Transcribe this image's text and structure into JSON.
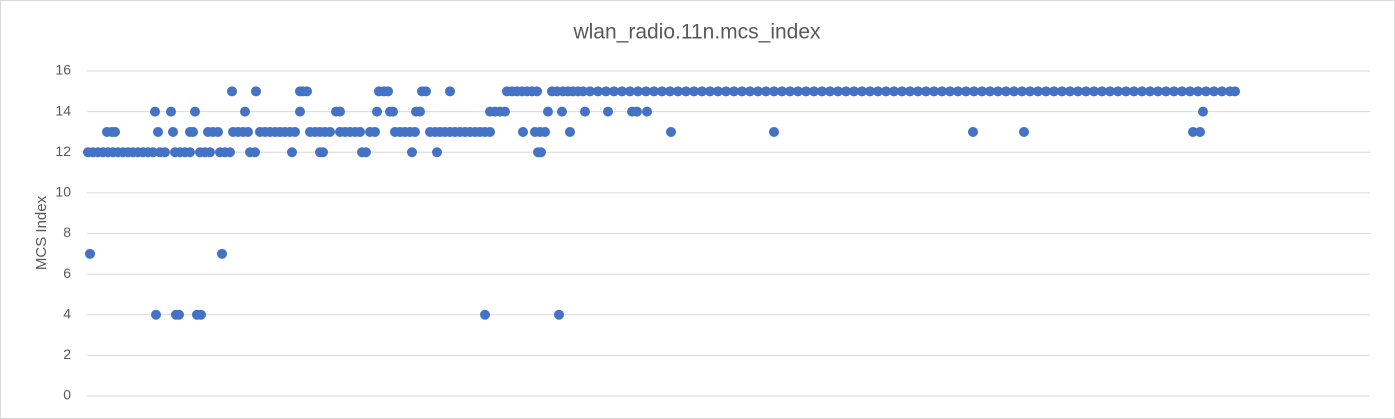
{
  "chart_data": {
    "type": "scatter",
    "title": "wlan_radio.11n.mcs_index",
    "y_label": "MCS Index",
    "color": "#4472c4",
    "grid": true,
    "xlim": [
      87,
      1370
    ],
    "ylim": [
      0,
      16
    ],
    "yticks": [
      0,
      2,
      4,
      6,
      8,
      10,
      12,
      14,
      16
    ],
    "x": [
      88,
      93,
      98,
      103,
      108,
      113,
      118,
      123,
      128,
      133,
      138,
      143,
      148,
      153,
      160,
      165,
      175,
      180,
      185,
      190,
      200,
      205,
      210,
      220,
      225,
      230,
      250,
      255,
      292,
      320,
      323,
      362,
      366,
      412,
      437,
      538,
      541,
      90,
      222,
      107,
      112,
      115,
      158,
      173,
      190,
      193,
      208,
      213,
      218,
      233,
      238,
      243,
      248,
      260,
      265,
      270,
      275,
      280,
      285,
      290,
      295,
      310,
      315,
      320,
      325,
      330,
      340,
      345,
      350,
      355,
      360,
      370,
      375,
      395,
      400,
      405,
      410,
      415,
      430,
      435,
      440,
      445,
      450,
      455,
      460,
      465,
      470,
      475,
      480,
      485,
      490,
      523,
      535,
      540,
      545,
      570,
      671,
      774,
      973,
      1024,
      1193,
      1200,
      155,
      171,
      195,
      245,
      300,
      336,
      340,
      377,
      390,
      393,
      416,
      420,
      490,
      495,
      500,
      505,
      548,
      562,
      585,
      608,
      632,
      637,
      647,
      1203,
      156,
      176,
      179,
      197,
      201,
      485,
      559,
      232,
      256,
      300,
      303,
      307,
      379,
      384,
      388,
      422,
      426,
      450,
      507,
      512,
      517,
      522,
      527,
      532,
      537,
      552,
      557,
      563,
      568,
      573,
      578,
      583,
      590,
      598,
      606,
      614,
      622,
      630,
      638,
      646,
      654,
      662,
      670,
      678,
      686,
      694,
      702,
      710,
      718,
      726,
      734,
      742,
      750,
      758,
      766,
      774,
      782,
      790,
      798,
      806,
      814,
      822,
      830,
      838,
      846,
      854,
      862,
      870,
      878,
      886,
      894,
      902,
      910,
      918,
      926,
      934,
      942,
      950,
      958,
      966,
      974,
      982,
      990,
      998,
      1006,
      1014,
      1022,
      1030,
      1038,
      1046,
      1054,
      1062,
      1070,
      1078,
      1086,
      1094,
      1102,
      1110,
      1118,
      1126,
      1134,
      1142,
      1150,
      1158,
      1166,
      1174,
      1182,
      1190,
      1198,
      1206,
      1214,
      1222,
      1230,
      1235
    ],
    "values": [
      12,
      12,
      12,
      12,
      12,
      12,
      12,
      12,
      12,
      12,
      12,
      12,
      12,
      12,
      12,
      12,
      12,
      12,
      12,
      12,
      12,
      12,
      12,
      12,
      12,
      12,
      12,
      12,
      12,
      12,
      12,
      12,
      12,
      12,
      12,
      12,
      12,
      7,
      7,
      13,
      13,
      13,
      13,
      13,
      13,
      13,
      13,
      13,
      13,
      13,
      13,
      13,
      13,
      13,
      13,
      13,
      13,
      13,
      13,
      13,
      13,
      13,
      13,
      13,
      13,
      13,
      13,
      13,
      13,
      13,
      13,
      13,
      13,
      13,
      13,
      13,
      13,
      13,
      13,
      13,
      13,
      13,
      13,
      13,
      13,
      13,
      13,
      13,
      13,
      13,
      13,
      13,
      13,
      13,
      13,
      13,
      13,
      13,
      13,
      13,
      13,
      13,
      14,
      14,
      14,
      14,
      14,
      14,
      14,
      14,
      14,
      14,
      14,
      14,
      14,
      14,
      14,
      14,
      14,
      14,
      14,
      14,
      14,
      14,
      14,
      14,
      4,
      4,
      4,
      4,
      4,
      4,
      4,
      15,
      15,
      15,
      15,
      15,
      15,
      15,
      15,
      15,
      15,
      15,
      15,
      15,
      15,
      15,
      15,
      15,
      15,
      15,
      15,
      15,
      15,
      15,
      15,
      15,
      15,
      15,
      15,
      15,
      15,
      15,
      15,
      15,
      15,
      15,
      15,
      15,
      15,
      15,
      15,
      15,
      15,
      15,
      15,
      15,
      15,
      15,
      15,
      15,
      15,
      15,
      15,
      15,
      15,
      15,
      15,
      15,
      15,
      15,
      15,
      15,
      15,
      15,
      15,
      15,
      15,
      15,
      15,
      15,
      15,
      15,
      15,
      15,
      15,
      15,
      15,
      15,
      15,
      15,
      15,
      15,
      15,
      15,
      15,
      15,
      15,
      15,
      15,
      15,
      15,
      15,
      15,
      15,
      15,
      15,
      15,
      15,
      15,
      15,
      15,
      15,
      15,
      15,
      15,
      15,
      15,
      15
    ]
  }
}
